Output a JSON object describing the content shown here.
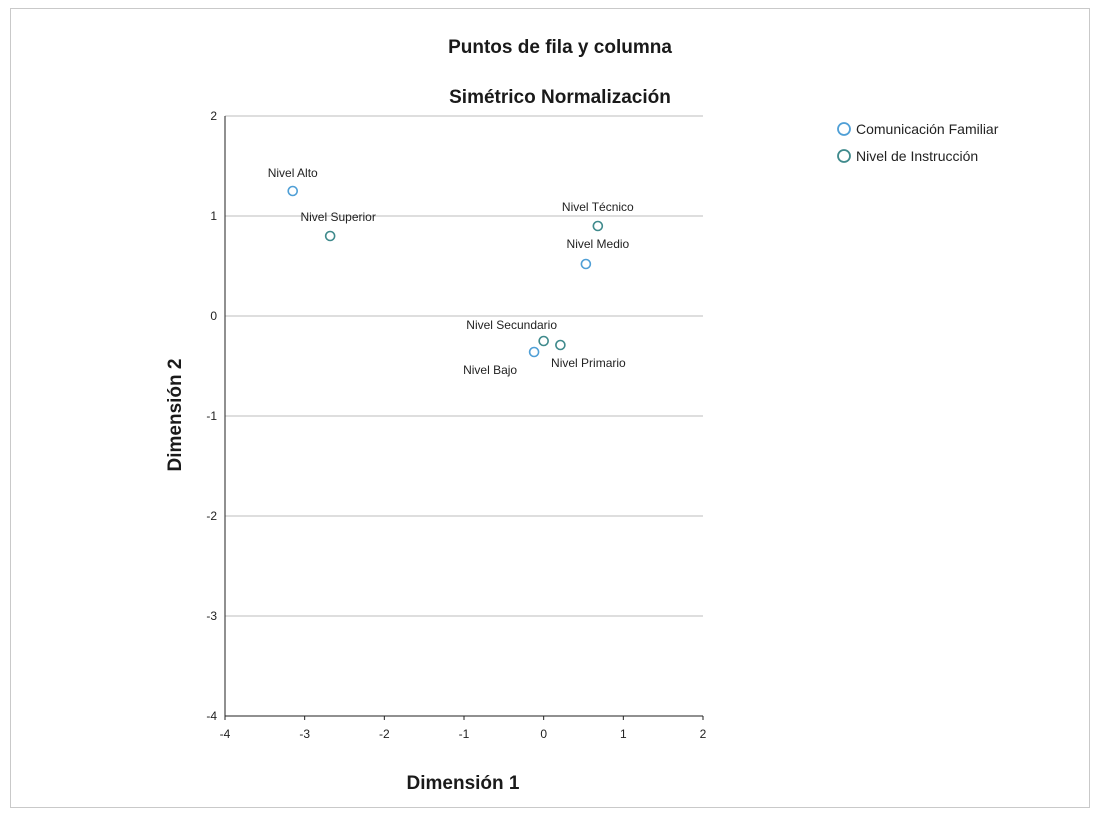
{
  "colors": {
    "comunicacion": "#4f9fd6",
    "instruccion": "#3f8a8c",
    "grid": "#bdbdbd",
    "axis": "#222222"
  },
  "chart_data": {
    "type": "scatter",
    "title": "Puntos de fila y columna",
    "subtitle": "Simétrico Normalización",
    "xlabel": "Dimensión 1",
    "ylabel": "Dimensión 2",
    "xlim": [
      -4,
      2
    ],
    "ylim": [
      -4,
      2
    ],
    "xticks": [
      -4,
      -3,
      -2,
      -1,
      0,
      1,
      2
    ],
    "yticks": [
      2,
      1,
      0,
      -1,
      -2,
      -3,
      -4
    ],
    "grid": "horizontal",
    "legend_position": "top-right",
    "series": [
      {
        "name": "Comunicación Familiar",
        "marker": "circle-open",
        "points": [
          {
            "label": "Nivel Alto",
            "x": -3.15,
            "y": 1.25
          },
          {
            "label": "Nivel Medio",
            "x": 0.53,
            "y": 0.52
          },
          {
            "label": "Nivel Bajo",
            "x": -0.12,
            "y": -0.36
          }
        ]
      },
      {
        "name": "Nivel de Instrucción",
        "marker": "circle-open",
        "points": [
          {
            "label": "Nivel Superior",
            "x": -2.68,
            "y": 0.8
          },
          {
            "label": "Nivel Técnico",
            "x": 0.68,
            "y": 0.9
          },
          {
            "label": "Nivel Secundario",
            "x": 0.0,
            "y": -0.25
          },
          {
            "label": "Nivel Primario",
            "x": 0.21,
            "y": -0.29
          }
        ]
      }
    ]
  }
}
